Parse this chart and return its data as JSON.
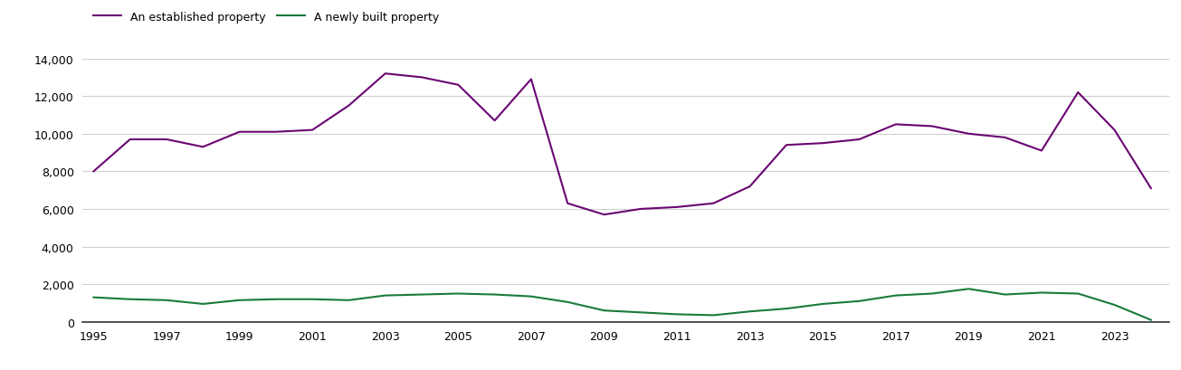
{
  "years": [
    1995,
    1996,
    1997,
    1998,
    1999,
    2000,
    2001,
    2002,
    2003,
    2004,
    2005,
    2006,
    2007,
    2008,
    2009,
    2010,
    2011,
    2012,
    2013,
    2014,
    2015,
    2016,
    2017,
    2018,
    2019,
    2020,
    2021,
    2022,
    2023,
    2024
  ],
  "newly_built": [
    1300,
    1200,
    1150,
    950,
    1150,
    1200,
    1200,
    1150,
    1400,
    1450,
    1500,
    1450,
    1350,
    1050,
    600,
    500,
    400,
    350,
    550,
    700,
    950,
    1100,
    1400,
    1500,
    1750,
    1450,
    1550,
    1500,
    900,
    100
  ],
  "established": [
    8000,
    9700,
    9700,
    9300,
    10100,
    10100,
    10200,
    11500,
    13200,
    13000,
    12600,
    10700,
    12900,
    6300,
    5700,
    6000,
    6100,
    6300,
    7200,
    9400,
    9500,
    9700,
    10500,
    10400,
    10000,
    9800,
    9100,
    12200,
    10200,
    7100
  ],
  "legend_new": "A newly built property",
  "legend_est": "An established property",
  "color_new": "#1a7a3c",
  "color_est": "#6a0572",
  "ylim": [
    0,
    14000
  ],
  "yticks": [
    0,
    2000,
    4000,
    6000,
    8000,
    10000,
    12000,
    14000
  ],
  "xtick_years": [
    1995,
    1997,
    1999,
    2001,
    2003,
    2005,
    2007,
    2009,
    2011,
    2013,
    2015,
    2017,
    2019,
    2021,
    2023
  ],
  "xlim_left": 1994.7,
  "xlim_right": 2024.5,
  "background_color": "#ffffff",
  "grid_color": "#d0d0d0",
  "spine_color": "#333333"
}
